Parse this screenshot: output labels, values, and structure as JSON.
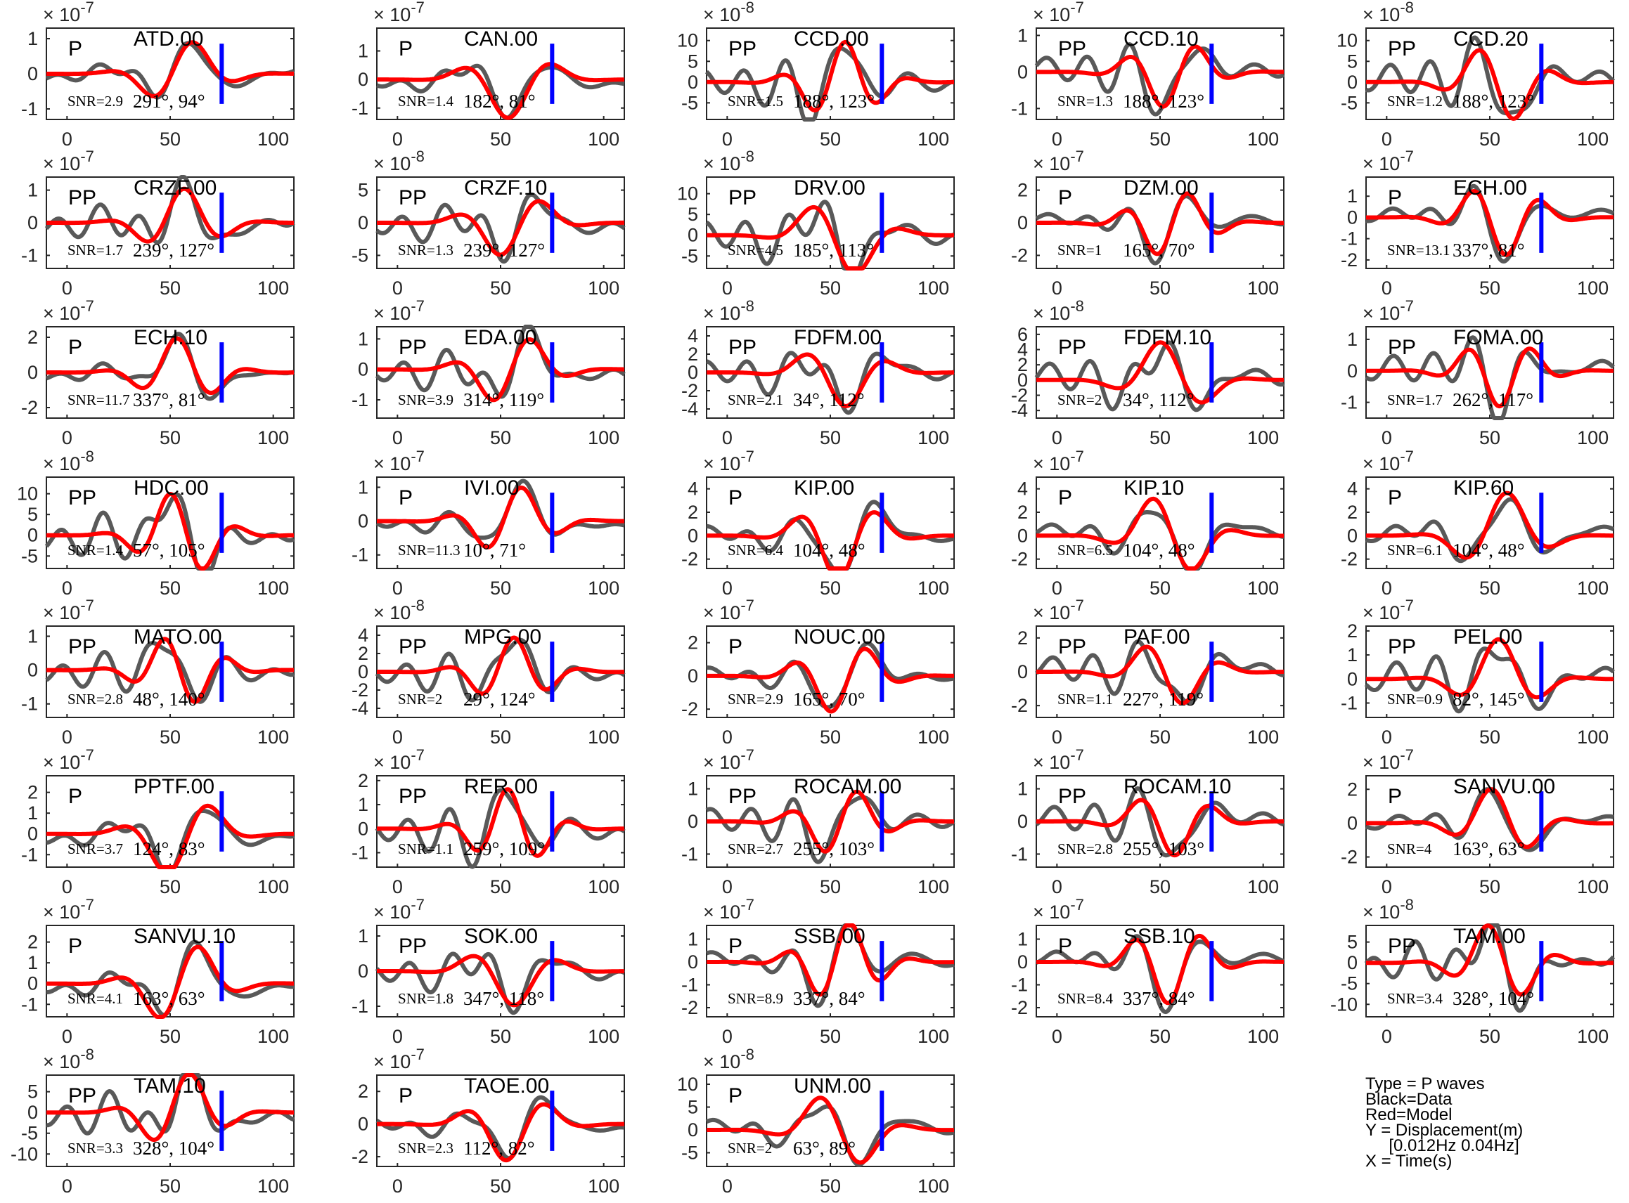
{
  "legend": {
    "type": "Type = P waves",
    "black": "Black=Data",
    "red": "Red=Model",
    "y": "Y = Displacement(m)",
    "band": "     [0.012Hz 0.04Hz]",
    "x": "X = Time(s)"
  },
  "colors": {
    "data": "#595959",
    "model": "#ff0000",
    "marker": "#0000ff",
    "axis": "#262626"
  },
  "chart_data": [
    {
      "type": "line",
      "station": "ATD.00",
      "wave": "P",
      "snr": "SNR=2.9",
      "azimuth": "291°, 94°",
      "exponent": "-7",
      "yticks": [
        1,
        0,
        -1
      ],
      "ylim": [
        -1.3,
        1.3
      ],
      "xticks": [
        0,
        50,
        100
      ],
      "xlim": [
        -10,
        110
      ]
    },
    {
      "type": "line",
      "station": "CAN.00",
      "wave": "P",
      "snr": "SNR=1.4",
      "azimuth": "182°, 81°",
      "exponent": "-7",
      "yticks": [
        1,
        0,
        -1
      ],
      "ylim": [
        -1.4,
        1.8
      ],
      "xticks": [
        0,
        50,
        100
      ],
      "xlim": [
        -10,
        110
      ]
    },
    {
      "type": "line",
      "station": "CCD.00",
      "wave": "PP",
      "snr": "SNR=1.5",
      "azimuth": "188°, 123°",
      "exponent": "-8",
      "yticks": [
        10,
        5,
        0,
        -5
      ],
      "ylim": [
        -9,
        13
      ],
      "xticks": [
        0,
        50,
        100
      ],
      "xlim": [
        -10,
        110
      ]
    },
    {
      "type": "line",
      "station": "CCD.10",
      "wave": "PP",
      "snr": "SNR=1.3",
      "azimuth": "188°, 123°",
      "exponent": "-7",
      "yticks": [
        1,
        0,
        -1
      ],
      "ylim": [
        -1.3,
        1.2
      ],
      "xticks": [
        0,
        50,
        100
      ],
      "xlim": [
        -10,
        110
      ]
    },
    {
      "type": "line",
      "station": "CCD.20",
      "wave": "PP",
      "snr": "SNR=1.2",
      "azimuth": "188°, 123°",
      "exponent": "-8",
      "yticks": [
        10,
        5,
        0,
        -5
      ],
      "ylim": [
        -9,
        13
      ],
      "xticks": [
        0,
        50,
        100
      ],
      "xlim": [
        -10,
        110
      ]
    },
    {
      "type": "line",
      "station": "CRZF.00",
      "wave": "PP",
      "snr": "SNR=1.7",
      "azimuth": "239°, 127°",
      "exponent": "-7",
      "yticks": [
        1,
        0,
        -1
      ],
      "ylim": [
        -1.4,
        1.4
      ],
      "xticks": [
        0,
        50,
        100
      ],
      "xlim": [
        -10,
        110
      ]
    },
    {
      "type": "line",
      "station": "CRZF.10",
      "wave": "PP",
      "snr": "SNR=1.3",
      "azimuth": "239°, 127°",
      "exponent": "-8",
      "yticks": [
        5,
        0,
        -5
      ],
      "ylim": [
        -7,
        7
      ],
      "xticks": [
        0,
        50,
        100
      ],
      "xlim": [
        -10,
        110
      ]
    },
    {
      "type": "line",
      "station": "DRV.00",
      "wave": "PP",
      "snr": "SNR=4.5",
      "azimuth": "185°, 113°",
      "exponent": "-8",
      "yticks": [
        10,
        5,
        0,
        -5
      ],
      "ylim": [
        -8,
        14
      ],
      "xticks": [
        0,
        50,
        100
      ],
      "xlim": [
        -10,
        110
      ]
    },
    {
      "type": "line",
      "station": "DZM.00",
      "wave": "P",
      "snr": "SNR=1",
      "azimuth": "165°, 70°",
      "exponent": "-7",
      "yticks": [
        2,
        0,
        -2
      ],
      "ylim": [
        -2.8,
        2.8
      ],
      "xticks": [
        0,
        50,
        100
      ],
      "xlim": [
        -10,
        110
      ]
    },
    {
      "type": "line",
      "station": "ECH.00",
      "wave": "P",
      "snr": "SNR=13.1",
      "azimuth": "337°, 81°",
      "exponent": "-7",
      "yticks": [
        1,
        0,
        -1,
        -2
      ],
      "ylim": [
        -2.4,
        1.9
      ],
      "xticks": [
        0,
        50,
        100
      ],
      "xlim": [
        -10,
        110
      ]
    },
    {
      "type": "line",
      "station": "ECH.10",
      "wave": "P",
      "snr": "SNR=11.7",
      "azimuth": "337°, 81°",
      "exponent": "-7",
      "yticks": [
        2,
        0,
        -2
      ],
      "ylim": [
        -2.6,
        2.6
      ],
      "xticks": [
        0,
        50,
        100
      ],
      "xlim": [
        -10,
        110
      ]
    },
    {
      "type": "line",
      "station": "EDA.00",
      "wave": "PP",
      "snr": "SNR=3.9",
      "azimuth": "314°, 119°",
      "exponent": "-7",
      "yticks": [
        1,
        0,
        -1
      ],
      "ylim": [
        -1.6,
        1.4
      ],
      "xticks": [
        0,
        50,
        100
      ],
      "xlim": [
        -10,
        110
      ]
    },
    {
      "type": "line",
      "station": "FDFM.00",
      "wave": "PP",
      "snr": "SNR=2.1",
      "azimuth": "34°, 112°",
      "exponent": "-8",
      "yticks": [
        4,
        2,
        0,
        -2,
        -4
      ],
      "ylim": [
        -5,
        5
      ],
      "xticks": [
        0,
        50,
        100
      ],
      "xlim": [
        -10,
        110
      ]
    },
    {
      "type": "line",
      "station": "FDFM.10",
      "wave": "PP",
      "snr": "SNR=2",
      "azimuth": "34°, 112°",
      "exponent": "-8",
      "yticks": [
        6,
        4,
        2,
        0,
        -2,
        -4
      ],
      "ylim": [
        -5,
        7
      ],
      "xticks": [
        0,
        50,
        100
      ],
      "xlim": [
        -10,
        110
      ]
    },
    {
      "type": "line",
      "station": "FOMA.00",
      "wave": "PP",
      "snr": "SNR=1.7",
      "azimuth": "262°, 117°",
      "exponent": "-7",
      "yticks": [
        1,
        0,
        -1
      ],
      "ylim": [
        -1.5,
        1.4
      ],
      "xticks": [
        0,
        50,
        100
      ],
      "xlim": [
        -10,
        110
      ]
    },
    {
      "type": "line",
      "station": "HDC.00",
      "wave": "PP",
      "snr": "SNR=1.4",
      "azimuth": "57°, 105°",
      "exponent": "-8",
      "yticks": [
        10,
        5,
        0,
        -5
      ],
      "ylim": [
        -8,
        14
      ],
      "xticks": [
        0,
        50,
        100
      ],
      "xlim": [
        -10,
        110
      ]
    },
    {
      "type": "line",
      "station": "IVI.00",
      "wave": "P",
      "snr": "SNR=11.3",
      "azimuth": "10°, 71°",
      "exponent": "-7",
      "yticks": [
        1,
        0,
        -1
      ],
      "ylim": [
        -1.4,
        1.3
      ],
      "xticks": [
        0,
        50,
        100
      ],
      "xlim": [
        -10,
        110
      ]
    },
    {
      "type": "line",
      "station": "KIP.00",
      "wave": "P",
      "snr": "SNR=6.4",
      "azimuth": "104°, 48°",
      "exponent": "-7",
      "yticks": [
        4,
        2,
        0,
        -2
      ],
      "ylim": [
        -2.8,
        5
      ],
      "xticks": [
        0,
        50,
        100
      ],
      "xlim": [
        -10,
        110
      ]
    },
    {
      "type": "line",
      "station": "KIP.10",
      "wave": "P",
      "snr": "SNR=6.5",
      "azimuth": "104°, 48°",
      "exponent": "-7",
      "yticks": [
        4,
        2,
        0,
        -2
      ],
      "ylim": [
        -2.8,
        5
      ],
      "xticks": [
        0,
        50,
        100
      ],
      "xlim": [
        -10,
        110
      ]
    },
    {
      "type": "line",
      "station": "KIP.60",
      "wave": "P",
      "snr": "SNR=6.1",
      "azimuth": "104°, 48°",
      "exponent": "-7",
      "yticks": [
        4,
        2,
        0,
        -2
      ],
      "ylim": [
        -2.8,
        5
      ],
      "xticks": [
        0,
        50,
        100
      ],
      "xlim": [
        -10,
        110
      ]
    },
    {
      "type": "line",
      "station": "MATO.00",
      "wave": "PP",
      "snr": "SNR=2.8",
      "azimuth": "48°, 140°",
      "exponent": "-7",
      "yticks": [
        1,
        0,
        -1
      ],
      "ylim": [
        -1.4,
        1.3
      ],
      "xticks": [
        0,
        50,
        100
      ],
      "xlim": [
        -10,
        110
      ]
    },
    {
      "type": "line",
      "station": "MPG.00",
      "wave": "PP",
      "snr": "SNR=2",
      "azimuth": "29°, 124°",
      "exponent": "-8",
      "yticks": [
        4,
        2,
        0,
        -2,
        -4
      ],
      "ylim": [
        -5,
        5
      ],
      "xticks": [
        0,
        50,
        100
      ],
      "xlim": [
        -10,
        110
      ]
    },
    {
      "type": "line",
      "station": "NOUC.00",
      "wave": "P",
      "snr": "SNR=2.9",
      "azimuth": "165°, 70°",
      "exponent": "-7",
      "yticks": [
        2,
        0,
        -2
      ],
      "ylim": [
        -2.5,
        3
      ],
      "xticks": [
        0,
        50,
        100
      ],
      "xlim": [
        -10,
        110
      ]
    },
    {
      "type": "line",
      "station": "PAF.00",
      "wave": "PP",
      "snr": "SNR=1.1",
      "azimuth": "227°, 119°",
      "exponent": "-7",
      "yticks": [
        2,
        0,
        -2
      ],
      "ylim": [
        -2.7,
        2.7
      ],
      "xticks": [
        0,
        50,
        100
      ],
      "xlim": [
        -10,
        110
      ]
    },
    {
      "type": "line",
      "station": "PEL.00",
      "wave": "PP",
      "snr": "SNR=0.9",
      "azimuth": "82°, 145°",
      "exponent": "-7",
      "yticks": [
        2,
        1,
        0,
        -1
      ],
      "ylim": [
        -1.6,
        2.2
      ],
      "xticks": [
        0,
        50,
        100
      ],
      "xlim": [
        -10,
        110
      ]
    },
    {
      "type": "line",
      "station": "PPTF.00",
      "wave": "P",
      "snr": "SNR=3.7",
      "azimuth": "124°, 83°",
      "exponent": "-7",
      "yticks": [
        2,
        1,
        0,
        -1
      ],
      "ylim": [
        -1.6,
        2.8
      ],
      "xticks": [
        0,
        50,
        100
      ],
      "xlim": [
        -10,
        110
      ]
    },
    {
      "type": "line",
      "station": "RER.00",
      "wave": "PP",
      "snr": "SNR=1.1",
      "azimuth": "259°, 109°",
      "exponent": "-7",
      "yticks": [
        2,
        1,
        0,
        -1
      ],
      "ylim": [
        -1.6,
        2.2
      ],
      "xticks": [
        0,
        50,
        100
      ],
      "xlim": [
        -10,
        110
      ]
    },
    {
      "type": "line",
      "station": "ROCAM.00",
      "wave": "PP",
      "snr": "SNR=2.7",
      "azimuth": "255°, 103°",
      "exponent": "-7",
      "yticks": [
        1,
        0,
        -1
      ],
      "ylim": [
        -1.4,
        1.4
      ],
      "xticks": [
        0,
        50,
        100
      ],
      "xlim": [
        -10,
        110
      ]
    },
    {
      "type": "line",
      "station": "ROCAM.10",
      "wave": "PP",
      "snr": "SNR=2.8",
      "azimuth": "255°, 103°",
      "exponent": "-7",
      "yticks": [
        1,
        0,
        -1
      ],
      "ylim": [
        -1.4,
        1.4
      ],
      "xticks": [
        0,
        50,
        100
      ],
      "xlim": [
        -10,
        110
      ]
    },
    {
      "type": "line",
      "station": "SANVU.00",
      "wave": "P",
      "snr": "SNR=4",
      "azimuth": "163°, 63°",
      "exponent": "-7",
      "yticks": [
        2,
        0,
        -2
      ],
      "ylim": [
        -2.6,
        2.8
      ],
      "xticks": [
        0,
        50,
        100
      ],
      "xlim": [
        -10,
        110
      ]
    },
    {
      "type": "line",
      "station": "SANVU.10",
      "wave": "P",
      "snr": "SNR=4.1",
      "azimuth": "163°, 63°",
      "exponent": "-7",
      "yticks": [
        2,
        1,
        0,
        -1
      ],
      "ylim": [
        -1.6,
        2.8
      ],
      "xticks": [
        0,
        50,
        100
      ],
      "xlim": [
        -10,
        110
      ]
    },
    {
      "type": "line",
      "station": "SOK.00",
      "wave": "PP",
      "snr": "SNR=1.8",
      "azimuth": "347°, 118°",
      "exponent": "-7",
      "yticks": [
        1,
        0,
        -1
      ],
      "ylim": [
        -1.3,
        1.3
      ],
      "xticks": [
        0,
        50,
        100
      ],
      "xlim": [
        -10,
        110
      ]
    },
    {
      "type": "line",
      "station": "SSB.00",
      "wave": "P",
      "snr": "SNR=8.9",
      "azimuth": "337°, 84°",
      "exponent": "-7",
      "yticks": [
        1,
        0,
        -1,
        -2
      ],
      "ylim": [
        -2.4,
        1.6
      ],
      "xticks": [
        0,
        50,
        100
      ],
      "xlim": [
        -10,
        110
      ]
    },
    {
      "type": "line",
      "station": "SSB.10",
      "wave": "P",
      "snr": "SNR=8.4",
      "azimuth": "337°, 84°",
      "exponent": "-7",
      "yticks": [
        1,
        0,
        -1,
        -2
      ],
      "ylim": [
        -2.4,
        1.6
      ],
      "xticks": [
        0,
        50,
        100
      ],
      "xlim": [
        -10,
        110
      ]
    },
    {
      "type": "line",
      "station": "TAM.00",
      "wave": "PP",
      "snr": "SNR=3.4",
      "azimuth": "328°, 104°",
      "exponent": "-8",
      "yticks": [
        5,
        0,
        -5,
        -10
      ],
      "ylim": [
        -13,
        9
      ],
      "xticks": [
        0,
        50,
        100
      ],
      "xlim": [
        -10,
        110
      ]
    },
    {
      "type": "line",
      "station": "TAM.10",
      "wave": "PP",
      "snr": "SNR=3.3",
      "azimuth": "328°, 104°",
      "exponent": "-8",
      "yticks": [
        5,
        0,
        -5,
        -10
      ],
      "ylim": [
        -13,
        9
      ],
      "xticks": [
        0,
        50,
        100
      ],
      "xlim": [
        -10,
        110
      ]
    },
    {
      "type": "line",
      "station": "TAOE.00",
      "wave": "P",
      "snr": "SNR=2.3",
      "azimuth": "112°, 82°",
      "exponent": "-7",
      "yticks": [
        2,
        0,
        -2
      ],
      "ylim": [
        -2.6,
        3
      ],
      "xticks": [
        0,
        50,
        100
      ],
      "xlim": [
        -10,
        110
      ]
    },
    {
      "type": "line",
      "station": "UNM.00",
      "wave": "P",
      "snr": "SNR=2",
      "azimuth": "63°, 89°",
      "exponent": "-8",
      "yticks": [
        10,
        5,
        0,
        -5
      ],
      "ylim": [
        -8,
        12
      ],
      "xticks": [
        0,
        50,
        100
      ],
      "xlim": [
        -10,
        110
      ]
    }
  ]
}
